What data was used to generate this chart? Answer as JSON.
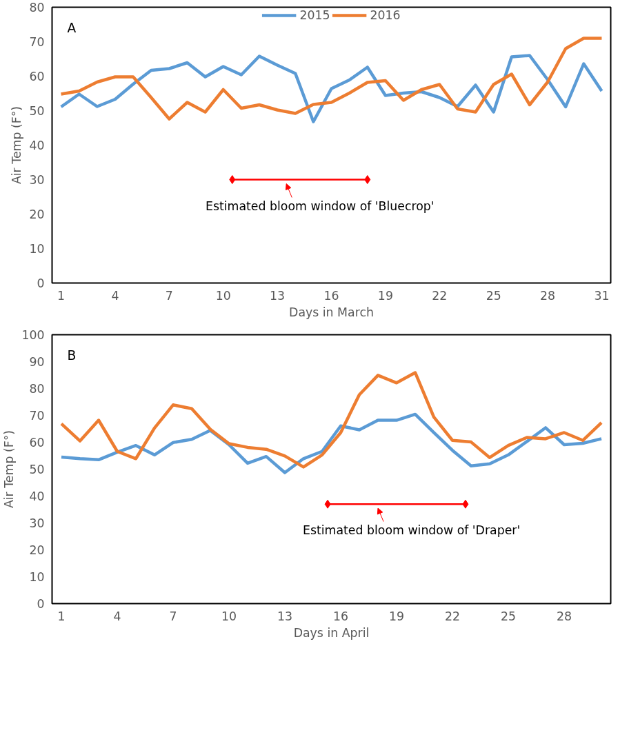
{
  "chart_data": [
    {
      "type": "line",
      "title": "A",
      "xlabel": "Days in March",
      "ylabel": "Air Temp (F°)",
      "x": [
        1,
        2,
        3,
        4,
        5,
        6,
        7,
        8,
        9,
        10,
        11,
        12,
        13,
        14,
        15,
        16,
        17,
        18,
        19,
        20,
        21,
        22,
        23,
        24,
        25,
        26,
        27,
        28,
        29,
        30,
        31
      ],
      "xlim": [
        0.5,
        31.5
      ],
      "xticks": [
        1,
        4,
        7,
        10,
        13,
        16,
        19,
        22,
        25,
        28,
        31
      ],
      "ylim": [
        0,
        80
      ],
      "yticks": [
        0,
        10,
        20,
        30,
        40,
        50,
        60,
        70,
        80
      ],
      "grid": false,
      "legend": "top",
      "line_style": "solid",
      "series": [
        {
          "name": "2015",
          "color": "#5b9bd5",
          "values": [
            51.1,
            54.8,
            51.2,
            53.3,
            57.7,
            61.7,
            62.2,
            63.9,
            59.8,
            62.8,
            60.4,
            65.8,
            63.2,
            60.8,
            46.8,
            56.4,
            58.9,
            62.6,
            54.4,
            55.1,
            55.5,
            53.8,
            51.2,
            57.4,
            49.6,
            65.6,
            66.0,
            59.0,
            51.1,
            63.6,
            55.7
          ]
        },
        {
          "name": "2016",
          "color": "#ed7d31",
          "values": [
            54.8,
            55.7,
            58.3,
            59.8,
            59.8,
            53.8,
            47.6,
            52.4,
            49.6,
            56.1,
            50.7,
            51.7,
            50.2,
            49.2,
            51.8,
            52.4,
            55.1,
            58.2,
            58.7,
            53.0,
            56.1,
            57.6,
            50.5,
            49.6,
            57.6,
            60.6,
            51.7,
            58.3,
            68.0,
            71.0,
            71.0
          ]
        },
        {
          "type": "line",
          "color": "#ff0000",
          "marker": "diamond",
          "x": [
            10.5,
            18
          ],
          "values": [
            30,
            30
          ]
        }
      ],
      "annotations": [
        {
          "text": "Estimated bloom window of 'Bluecrop'",
          "x": 13.5,
          "y": 30
        }
      ]
    },
    {
      "type": "line",
      "title": "B",
      "xlabel": "Days in April",
      "ylabel": "Air Temp (F°)",
      "x": [
        1,
        2,
        3,
        4,
        5,
        6,
        7,
        8,
        9,
        10,
        11,
        12,
        13,
        14,
        15,
        16,
        17,
        18,
        19,
        20,
        21,
        22,
        23,
        24,
        25,
        26,
        27,
        28,
        29,
        30
      ],
      "xlim": [
        0.5,
        30.5
      ],
      "xticks": [
        1,
        4,
        7,
        10,
        13,
        16,
        19,
        22,
        25,
        28
      ],
      "ylim": [
        0,
        100
      ],
      "yticks": [
        0,
        10,
        20,
        30,
        40,
        50,
        60,
        70,
        80,
        90,
        100
      ],
      "grid": false,
      "legend": false,
      "line_style": "solid",
      "series": [
        {
          "color": "#5b9bd5",
          "values": [
            54.5,
            53.9,
            53.5,
            56.3,
            58.8,
            55.3,
            59.9,
            61.1,
            64.4,
            59.1,
            52.2,
            54.7,
            48.7,
            53.9,
            56.6,
            66.1,
            64.6,
            68.2,
            68.2,
            70.4,
            63.6,
            57.0,
            51.2,
            52.0,
            55.3,
            60.3,
            65.4,
            59.1,
            59.6,
            61.3
          ]
        },
        {
          "color": "#ed7d31",
          "values": [
            66.9,
            60.5,
            68.2,
            56.6,
            53.9,
            65.3,
            73.9,
            72.5,
            64.8,
            59.5,
            58.1,
            57.4,
            54.9,
            50.8,
            55.3,
            63.6,
            77.7,
            84.9,
            82.1,
            85.9,
            69.4,
            60.7,
            60.1,
            54.3,
            58.8,
            61.8,
            61.3,
            63.6,
            60.7,
            67.3
          ]
        },
        {
          "type": "line",
          "color": "#ff0000",
          "marker": "diamond",
          "x": [
            15.3,
            22.7
          ],
          "values": [
            37,
            37
          ]
        }
      ],
      "annotations": [
        {
          "text": "Estimated bloom window of 'Draper'",
          "x": 18,
          "y": 37
        }
      ]
    }
  ]
}
